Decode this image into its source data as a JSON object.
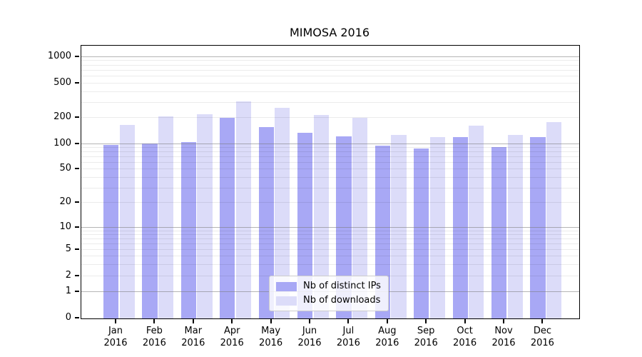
{
  "chart_data": {
    "type": "bar",
    "title": "MIMOSA 2016",
    "xlabel": "",
    "ylabel": "",
    "year_label": "2016",
    "categories": [
      "Jan",
      "Feb",
      "Mar",
      "Apr",
      "May",
      "Jun",
      "Jul",
      "Aug",
      "Sep",
      "Oct",
      "Nov",
      "Dec"
    ],
    "series": [
      {
        "name": "Nb of distinct IPs",
        "color": "#a8a8f5",
        "values": [
          97,
          101,
          106,
          197,
          155,
          134,
          123,
          96,
          88,
          121,
          93,
          121
        ]
      },
      {
        "name": "Nb of downloads",
        "color": "#dcdcf9",
        "values": [
          165,
          207,
          220,
          308,
          258,
          214,
          197,
          127,
          121,
          162,
          127,
          177
        ]
      }
    ],
    "y_axis": {
      "scale": "symlog",
      "tick_labels": [
        "0",
        "1",
        "2",
        "5",
        "10",
        "20",
        "50",
        "100",
        "200",
        "500",
        "1000"
      ],
      "ticks": [
        0,
        1,
        2,
        5,
        10,
        20,
        50,
        100,
        200,
        500,
        1000
      ],
      "ylim": [
        0,
        1340
      ]
    },
    "grid": "on (major darker, minor lighter, drawn over bars)",
    "legend_position": "lower center"
  }
}
